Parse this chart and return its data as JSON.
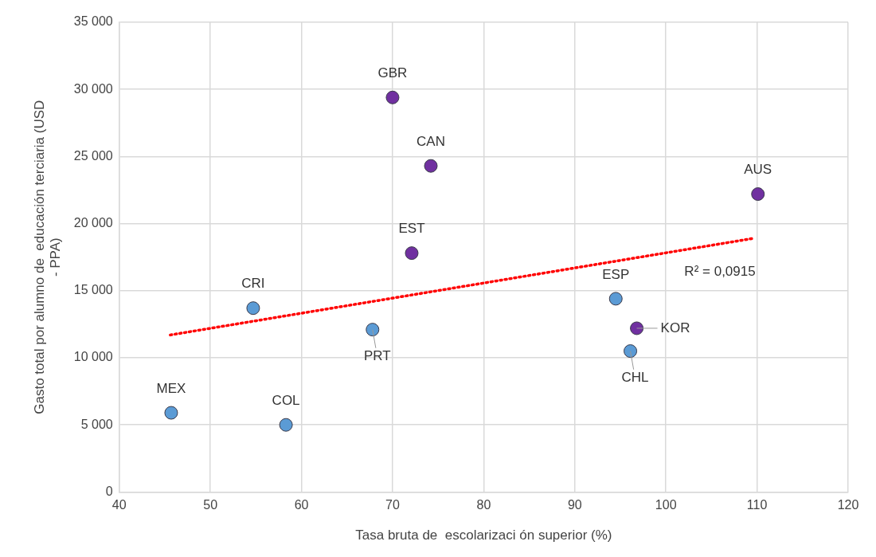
{
  "chart_data": {
    "type": "scatter",
    "xlabel": "Tasa bruta de  escolarizaci ón superior (%)",
    "ylabel": "Gasto total por alumno de  educación terciaria (USD - PPA)",
    "marker": "circle",
    "grid": true,
    "xlim": [
      40,
      120
    ],
    "xticks": [
      40,
      50,
      60,
      70,
      80,
      90,
      100,
      110,
      120
    ],
    "ylim": [
      0,
      35000
    ],
    "yticks": [
      0,
      {
        "value": 5000,
        "label": "5 000"
      },
      {
        "value": 10000,
        "label": "10 000"
      },
      {
        "value": 15000,
        "label": "15 000"
      },
      {
        "value": 20000,
        "label": "20 000"
      },
      {
        "value": 25000,
        "label": "25 000"
      },
      {
        "value": 30000,
        "label": "30 000"
      },
      {
        "value": 35000,
        "label": "35 000"
      }
    ],
    "series": [
      {
        "color": "#5b9bd5",
        "x": [
          45.7,
          58.3,
          54.7,
          67.8,
          94.5,
          96.1
        ],
        "values": [
          5900,
          5000,
          13700,
          12100,
          14400,
          10500
        ]
      },
      {
        "color": "#7030a0",
        "x": [
          70.0,
          74.2,
          72.1,
          96.8,
          110.1
        ],
        "values": [
          29400,
          24300,
          17800,
          12200,
          22200
        ]
      },
      {
        "type": "line",
        "color": "#ff0000",
        "line_style": "dotted",
        "marker": "none",
        "x": [
          45.6,
          109.6
        ],
        "values": [
          11700,
          18900
        ]
      }
    ],
    "annotations": [
      {
        "text": "MEX",
        "x": 45.7,
        "y": 5900
      },
      {
        "text": "COL",
        "x": 58.3,
        "y": 5000
      },
      {
        "text": "CRI",
        "x": 54.7,
        "y": 13700
      },
      {
        "text": "PRT",
        "x": 67.8,
        "y": 12100
      },
      {
        "text": "ESP",
        "x": 94.5,
        "y": 14400
      },
      {
        "text": "CHL",
        "x": 96.1,
        "y": 10500
      },
      {
        "text": "GBR",
        "x": 70.0,
        "y": 29400
      },
      {
        "text": "CAN",
        "x": 74.2,
        "y": 24300
      },
      {
        "text": "EST",
        "x": 72.1,
        "y": 17800
      },
      {
        "text": "KOR",
        "x": 96.8,
        "y": 12200
      },
      {
        "text": "AUS",
        "x": 110.1,
        "y": 22200
      },
      "R² = 0,0915"
    ]
  }
}
